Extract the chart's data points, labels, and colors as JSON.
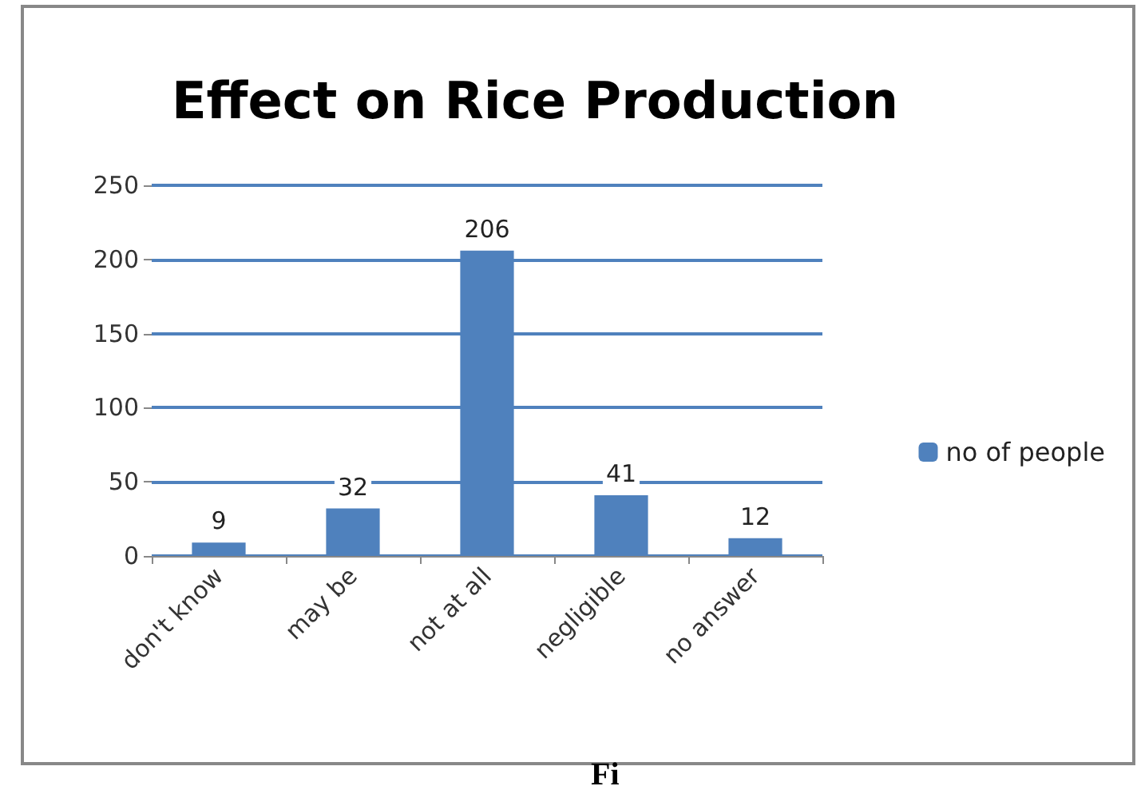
{
  "chart_data": {
    "type": "bar",
    "title": "Effect on Rice Production",
    "categories": [
      "don't know",
      "may be",
      "not at all",
      "negligible",
      "no answer"
    ],
    "series": [
      {
        "name": "no of people",
        "color": "#4f81bd",
        "values": [
          9,
          32,
          206,
          41,
          12
        ]
      }
    ],
    "ylim": [
      0,
      250
    ],
    "yticks": [
      0,
      50,
      100,
      150,
      200,
      250
    ],
    "grid": "y",
    "legend": "right",
    "data_labels": true,
    "annotations": [
      "Fi"
    ]
  }
}
